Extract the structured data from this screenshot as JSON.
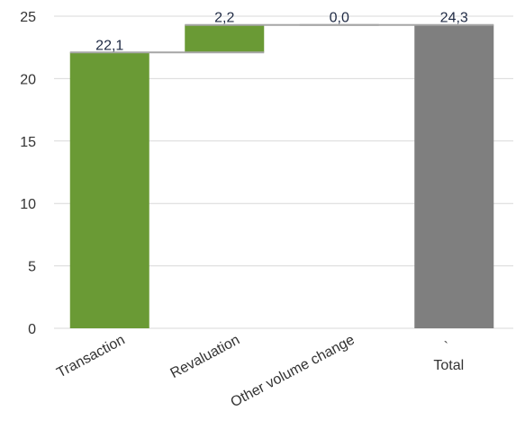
{
  "chart_data": {
    "type": "bar",
    "subtype": "waterfall",
    "categories": [
      "Transaction",
      "Revaluation",
      "Other volume change",
      "Total"
    ],
    "values": [
      22.1,
      2.2,
      0.0,
      24.3
    ],
    "value_labels": [
      "22,1",
      "2,2",
      "0,0",
      "24,3"
    ],
    "bar_kinds": [
      "increase",
      "increase",
      "increase",
      "total"
    ],
    "ylim": [
      0,
      25
    ],
    "yticks": [
      0,
      5,
      10,
      15,
      20,
      25
    ],
    "ytick_labels": [
      "0",
      "5",
      "10",
      "15",
      "20",
      "25"
    ],
    "grid": true,
    "legend": "none",
    "colors": {
      "increase": "#6a9a35",
      "total": "#7f7f7f",
      "connector": "#a6a6a6",
      "grid": "#d9d9d9"
    },
    "stray_mark": "`"
  }
}
